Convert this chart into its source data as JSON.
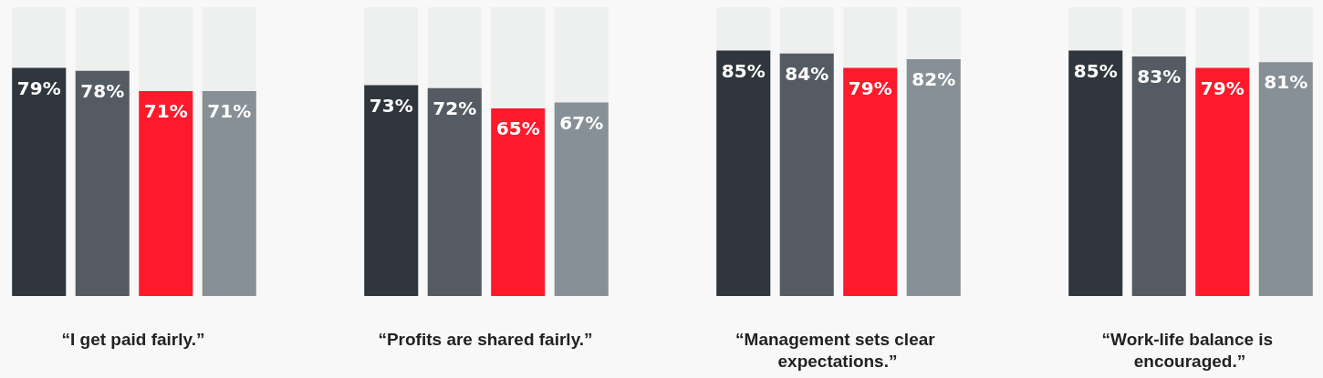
{
  "chart_data": [
    {
      "type": "bar",
      "xlabel": "“I get paid fairly.”",
      "categories": [
        null,
        null,
        null,
        null
      ],
      "values": [
        79,
        78,
        71,
        71
      ],
      "value_labels": [
        "79%",
        "78%",
        "71%",
        "71%"
      ],
      "colors": [
        "#30363d",
        "#545b63",
        "#fe1a2b",
        "#879097"
      ],
      "ylim": [
        0,
        100
      ],
      "tick_labels": false
    },
    {
      "type": "bar",
      "xlabel": "“Profits are shared fairly.”",
      "categories": [
        null,
        null,
        null,
        null
      ],
      "values": [
        73,
        72,
        65,
        67
      ],
      "value_labels": [
        "73%",
        "72%",
        "65%",
        "67%"
      ],
      "colors": [
        "#30363d",
        "#545b63",
        "#fe1a2b",
        "#879097"
      ],
      "ylim": [
        0,
        100
      ],
      "tick_labels": false
    },
    {
      "type": "bar",
      "xlabel": "“Management sets clear expectations.”",
      "categories": [
        null,
        null,
        null,
        null
      ],
      "values": [
        85,
        84,
        79,
        82
      ],
      "value_labels": [
        "85%",
        "84%",
        "79%",
        "82%"
      ],
      "colors": [
        "#30363d",
        "#545b63",
        "#fe1a2b",
        "#879097"
      ],
      "ylim": [
        0,
        100
      ],
      "tick_labels": false
    },
    {
      "type": "bar",
      "xlabel": "“Work-life balance is encouraged.”",
      "categories": [
        null,
        null,
        null,
        null
      ],
      "values": [
        85,
        83,
        79,
        81
      ],
      "value_labels": [
        "85%",
        "83%",
        "79%",
        "81%"
      ],
      "colors": [
        "#30363d",
        "#545b63",
        "#fe1a2b",
        "#879097"
      ],
      "ylim": [
        0,
        100
      ],
      "tick_labels": false
    }
  ]
}
